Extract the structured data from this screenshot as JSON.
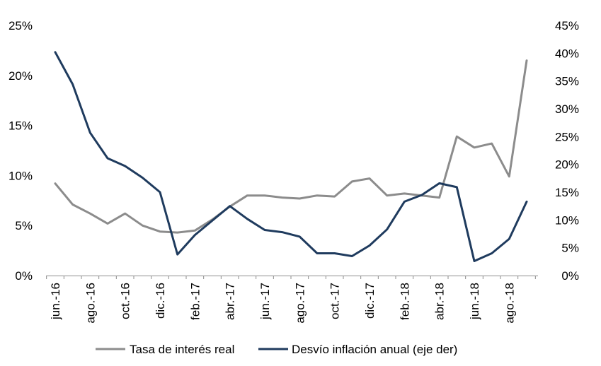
{
  "chart_data": {
    "type": "line",
    "categories": [
      "jun.-16",
      "jul.-16",
      "ago.-16",
      "sep.-16",
      "oct.-16",
      "nov.-16",
      "dic.-16",
      "ene.-17",
      "feb.-17",
      "mar.-17",
      "abr.-17",
      "may.-17",
      "jun.-17",
      "jul.-17",
      "ago.-17",
      "sep.-17",
      "oct.-17",
      "nov.-17",
      "dic.-17",
      "ene.-18",
      "feb.-18",
      "mar.-18",
      "abr.-18",
      "may.-18",
      "jun.-18",
      "jul.-18",
      "ago.-18",
      "sep.-18"
    ],
    "x_tick_labels": [
      "jun.-16",
      "ago.-16",
      "oct.-16",
      "dic.-16",
      "feb.-17",
      "abr.-17",
      "jun.-17",
      "ago.-17",
      "oct.-17",
      "dic.-17",
      "feb.-18",
      "abr.-18",
      "jun.-18",
      "ago.-18"
    ],
    "series": [
      {
        "name": "Tasa de interés real",
        "axis": "left",
        "color": "#8c8c8c",
        "values": [
          9.2,
          7.1,
          6.2,
          5.2,
          6.2,
          5.0,
          4.4,
          4.3,
          4.5,
          5.6,
          6.9,
          8.0,
          8.0,
          7.8,
          7.7,
          8.0,
          7.9,
          9.4,
          9.7,
          8.0,
          8.2,
          8.0,
          7.8,
          13.9,
          12.8,
          13.2,
          9.9,
          21.5
        ]
      },
      {
        "name": "Desvío inflación anual (eje der)",
        "axis": "right",
        "color": "#1f3b5e",
        "values": [
          40.2,
          34.4,
          25.7,
          21.1,
          19.7,
          17.6,
          15.0,
          3.8,
          7.3,
          9.9,
          12.5,
          10.2,
          8.2,
          7.8,
          7.0,
          4.0,
          4.0,
          3.5,
          5.4,
          8.3,
          13.3,
          14.5,
          16.6,
          15.9,
          2.6,
          4.0,
          6.6,
          13.3
        ]
      }
    ],
    "y_left": {
      "ticks": [
        "0%",
        "5%",
        "10%",
        "15%",
        "20%",
        "25%"
      ],
      "min": 0,
      "max": 25
    },
    "y_right": {
      "ticks": [
        "0%",
        "5%",
        "10%",
        "15%",
        "20%",
        "25%",
        "30%",
        "35%",
        "40%",
        "45%"
      ],
      "min": 0,
      "max": 45
    },
    "grid": false,
    "legend_position": "bottom"
  }
}
